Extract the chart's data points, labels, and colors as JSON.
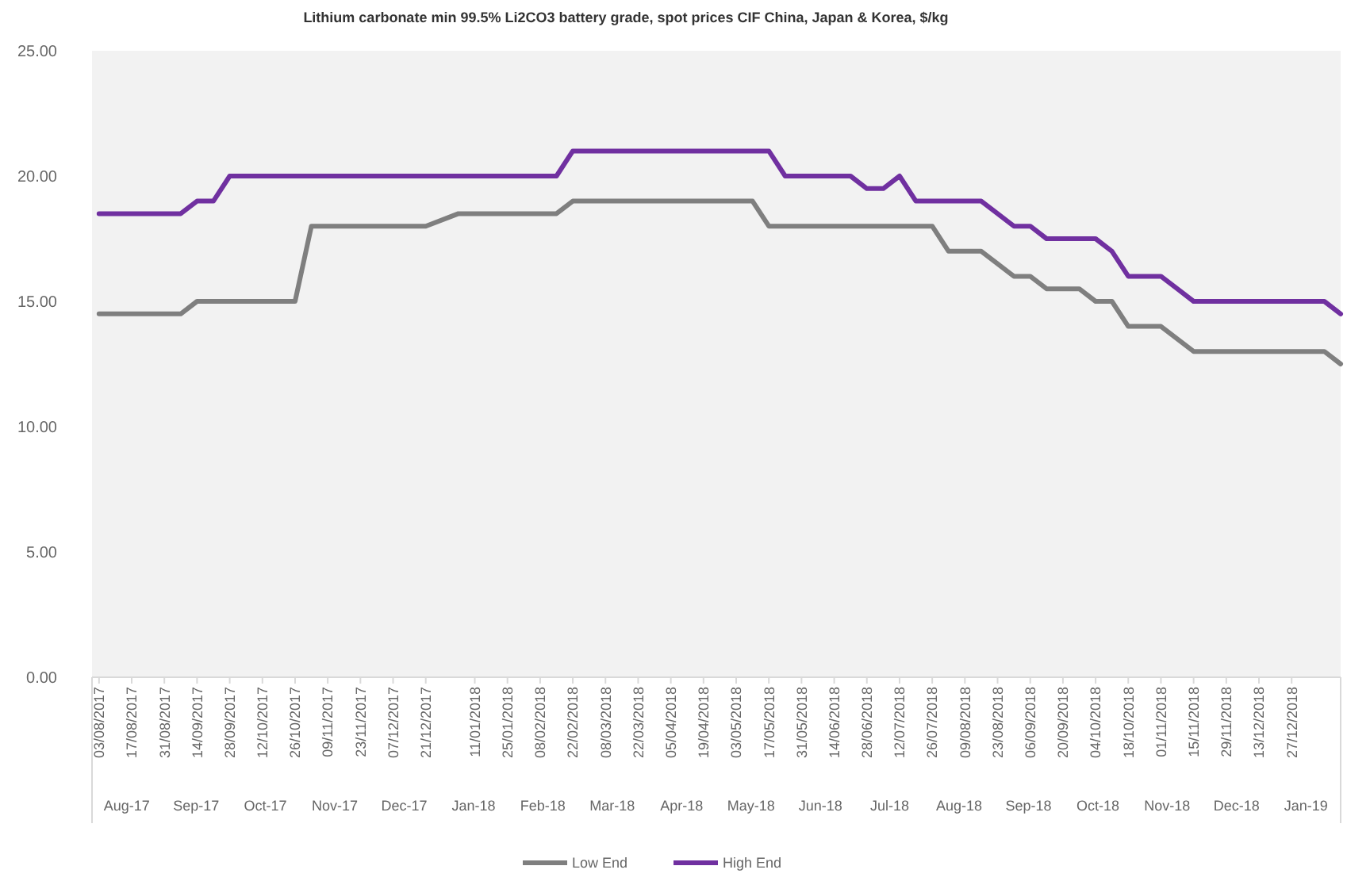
{
  "chart_data": {
    "type": "line",
    "title": "Lithium carbonate min 99.5% Li2CO3 battery grade, spot prices CIF China, Japan & Korea, $/kg",
    "x": [
      "2017-08-03",
      "2017-08-10",
      "2017-08-17",
      "2017-08-24",
      "2017-08-31",
      "2017-09-07",
      "2017-09-14",
      "2017-09-21",
      "2017-09-28",
      "2017-10-05",
      "2017-10-12",
      "2017-10-19",
      "2017-10-26",
      "2017-11-02",
      "2017-11-09",
      "2017-11-16",
      "2017-11-23",
      "2017-11-30",
      "2017-12-07",
      "2017-12-14",
      "2017-12-21",
      "2018-01-04",
      "2018-01-11",
      "2018-01-18",
      "2018-01-25",
      "2018-02-01",
      "2018-02-08",
      "2018-02-15",
      "2018-02-22",
      "2018-03-01",
      "2018-03-08",
      "2018-03-15",
      "2018-03-22",
      "2018-03-29",
      "2018-04-05",
      "2018-04-12",
      "2018-04-19",
      "2018-04-26",
      "2018-05-03",
      "2018-05-10",
      "2018-05-17",
      "2018-05-24",
      "2018-05-31",
      "2018-06-07",
      "2018-06-14",
      "2018-06-21",
      "2018-06-28",
      "2018-07-05",
      "2018-07-12",
      "2018-07-19",
      "2018-07-26",
      "2018-08-02",
      "2018-08-09",
      "2018-08-16",
      "2018-08-23",
      "2018-08-30",
      "2018-09-06",
      "2018-09-13",
      "2018-09-20",
      "2018-09-27",
      "2018-10-04",
      "2018-10-11",
      "2018-10-18",
      "2018-10-25",
      "2018-11-01",
      "2018-11-08",
      "2018-11-15",
      "2018-11-22",
      "2018-11-29",
      "2018-12-06",
      "2018-12-13",
      "2018-12-20",
      "2018-12-27",
      "2019-01-03",
      "2019-01-10",
      "2019-01-17"
    ],
    "series": [
      {
        "name": "Low End",
        "color": "#7f7f7f",
        "values": [
          14.5,
          14.5,
          14.5,
          14.5,
          14.5,
          14.5,
          15,
          15,
          15,
          15,
          15,
          15,
          15,
          18,
          18,
          18,
          18,
          18,
          18,
          18,
          18,
          18.5,
          18.5,
          18.5,
          18.5,
          18.5,
          18.5,
          18.5,
          19,
          19,
          19,
          19,
          19,
          19,
          19,
          19,
          19,
          19,
          19,
          19,
          18,
          18,
          18,
          18,
          18,
          18,
          18,
          18,
          18,
          18,
          18,
          17,
          17,
          17,
          16.5,
          16,
          16,
          15.5,
          15.5,
          15.5,
          15,
          15,
          14,
          14,
          14,
          13.5,
          13,
          13,
          13,
          13,
          13,
          13,
          13,
          13,
          13,
          12.5
        ]
      },
      {
        "name": "High End",
        "color": "#7030a0",
        "values": [
          18.5,
          18.5,
          18.5,
          18.5,
          18.5,
          18.5,
          19,
          19,
          20,
          20,
          20,
          20,
          20,
          20,
          20,
          20,
          20,
          20,
          20,
          20,
          20,
          20,
          20,
          20,
          20,
          20,
          20,
          20,
          21,
          21,
          21,
          21,
          21,
          21,
          21,
          21,
          21,
          21,
          21,
          21,
          21,
          20,
          20,
          20,
          20,
          20,
          19.5,
          19.5,
          20,
          19,
          19,
          19,
          19,
          19,
          18.5,
          18,
          18,
          17.5,
          17.5,
          17.5,
          17.5,
          17,
          16,
          16,
          16,
          15.5,
          15,
          15,
          15,
          15,
          15,
          15,
          15,
          15,
          15,
          14.5
        ]
      }
    ],
    "xlim": [
      "2017-07-31",
      "2019-01-17"
    ],
    "xticks": [
      {
        "value": "2017-08-03",
        "label": "03/08/2017"
      },
      {
        "value": "2017-08-17",
        "label": "17/08/2017"
      },
      {
        "value": "2017-08-31",
        "label": "31/08/2017"
      },
      {
        "value": "2017-09-14",
        "label": "14/09/2017"
      },
      {
        "value": "2017-09-28",
        "label": "28/09/2017"
      },
      {
        "value": "2017-10-12",
        "label": "12/10/2017"
      },
      {
        "value": "2017-10-26",
        "label": "26/10/2017"
      },
      {
        "value": "2017-11-09",
        "label": "09/11/2017"
      },
      {
        "value": "2017-11-23",
        "label": "23/11/2017"
      },
      {
        "value": "2017-12-07",
        "label": "07/12/2017"
      },
      {
        "value": "2017-12-21",
        "label": "21/12/2017"
      },
      {
        "value": "2018-01-11",
        "label": "11/01/2018"
      },
      {
        "value": "2018-01-25",
        "label": "25/01/2018"
      },
      {
        "value": "2018-02-08",
        "label": "08/02/2018"
      },
      {
        "value": "2018-02-22",
        "label": "22/02/2018"
      },
      {
        "value": "2018-03-08",
        "label": "08/03/2018"
      },
      {
        "value": "2018-03-22",
        "label": "22/03/2018"
      },
      {
        "value": "2018-04-05",
        "label": "05/04/2018"
      },
      {
        "value": "2018-04-19",
        "label": "19/04/2018"
      },
      {
        "value": "2018-05-03",
        "label": "03/05/2018"
      },
      {
        "value": "2018-05-17",
        "label": "17/05/2018"
      },
      {
        "value": "2018-05-31",
        "label": "31/05/2018"
      },
      {
        "value": "2018-06-14",
        "label": "14/06/2018"
      },
      {
        "value": "2018-06-28",
        "label": "28/06/2018"
      },
      {
        "value": "2018-07-12",
        "label": "12/07/2018"
      },
      {
        "value": "2018-07-26",
        "label": "26/07/2018"
      },
      {
        "value": "2018-08-09",
        "label": "09/08/2018"
      },
      {
        "value": "2018-08-23",
        "label": "23/08/2018"
      },
      {
        "value": "2018-09-06",
        "label": "06/09/2018"
      },
      {
        "value": "2018-09-20",
        "label": "20/09/2018"
      },
      {
        "value": "2018-10-04",
        "label": "04/10/2018"
      },
      {
        "value": "2018-10-18",
        "label": "18/10/2018"
      },
      {
        "value": "2018-11-01",
        "label": "01/11/2018"
      },
      {
        "value": "2018-11-15",
        "label": "15/11/2018"
      },
      {
        "value": "2018-11-29",
        "label": "29/11/2018"
      },
      {
        "value": "2018-12-13",
        "label": "13/12/2018"
      },
      {
        "value": "2018-12-27",
        "label": "27/12/2018"
      }
    ],
    "ylim": [
      0,
      25
    ],
    "yticks": [
      {
        "value": 0,
        "label": "0.00"
      },
      {
        "value": 5,
        "label": "5.00"
      },
      {
        "value": 10,
        "label": "10.00"
      },
      {
        "value": 15,
        "label": "15.00"
      },
      {
        "value": 20,
        "label": "20.00"
      },
      {
        "value": 25,
        "label": "25.00"
      }
    ],
    "annotations": [
      "Aug-17",
      "Sep-17",
      "Oct-17",
      "Nov-17",
      "Dec-17",
      "Jan-18",
      "Feb-18",
      "Mar-18",
      "Apr-18",
      "May-18",
      "Jun-18",
      "Jul-18",
      "Aug-18",
      "Sep-18",
      "Oct-18",
      "Nov-18",
      "Dec-18",
      "Jan-19"
    ],
    "grid": false,
    "legend": "bottom",
    "marker": "none",
    "line_style": "solid"
  }
}
